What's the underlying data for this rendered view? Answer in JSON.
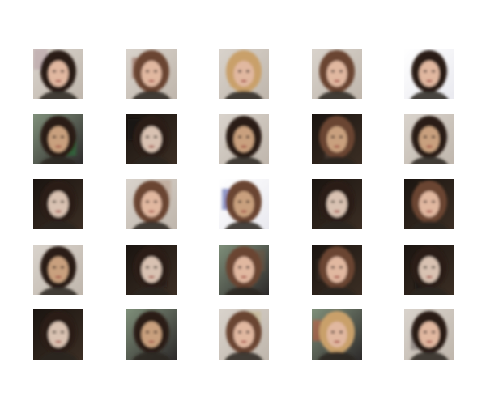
{
  "figure": {
    "rows": 5,
    "cols": 5,
    "background": "#ffffff",
    "samples": [
      {
        "bg": "light",
        "hair": "dark",
        "skin": "light",
        "tint": "#b49aa2"
      },
      {
        "bg": "light",
        "hair": "brown",
        "skin": "light",
        "tint": "#8a5a48"
      },
      {
        "bg": "light",
        "hair": "blonde",
        "skin": "light",
        "tint": "#c7a57a"
      },
      {
        "bg": "light",
        "hair": "brown",
        "skin": "light",
        "tint": "#6e4b44"
      },
      {
        "bg": "white",
        "hair": "dark",
        "skin": "light",
        "tint": "#2a2220"
      },
      {
        "bg": "mixed",
        "hair": "dark",
        "skin": "tan",
        "tint": "#2a7a3a"
      },
      {
        "bg": "dark",
        "hair": "dark",
        "skin": "pale",
        "tint": "#111111"
      },
      {
        "bg": "light",
        "hair": "dark",
        "skin": "tan",
        "tint": "#8c7b6a"
      },
      {
        "bg": "dark",
        "hair": "brown",
        "skin": "tan",
        "tint": "#55473e"
      },
      {
        "bg": "light",
        "hair": "dark",
        "skin": "tan",
        "tint": "#d9cf8f"
      },
      {
        "bg": "dark",
        "hair": "dark",
        "skin": "pale",
        "tint": "#1a1a1a"
      },
      {
        "bg": "light",
        "hair": "brown",
        "skin": "light",
        "tint": "#b89a86"
      },
      {
        "bg": "white",
        "hair": "brown",
        "skin": "tan",
        "tint": "#3e4aa0"
      },
      {
        "bg": "dark",
        "hair": "dark",
        "skin": "pale",
        "tint": "#2a1e18"
      },
      {
        "bg": "dark",
        "hair": "brown",
        "skin": "light",
        "tint": "#8b5b3d"
      },
      {
        "bg": "light",
        "hair": "dark",
        "skin": "tan",
        "tint": "#c8b57a"
      },
      {
        "bg": "dark",
        "hair": "dark",
        "skin": "pale",
        "tint": "#1d1713"
      },
      {
        "bg": "mixed",
        "hair": "brown",
        "skin": "light",
        "tint": "#6f5440"
      },
      {
        "bg": "dark",
        "hair": "brown",
        "skin": "light",
        "tint": "#3a2e28"
      },
      {
        "bg": "dark",
        "hair": "dark",
        "skin": "pale",
        "tint": "#121212"
      },
      {
        "bg": "dark",
        "hair": "dark",
        "skin": "pale",
        "tint": "#1b1410"
      },
      {
        "bg": "mixed",
        "hair": "dark",
        "skin": "tan",
        "tint": "#274066"
      },
      {
        "bg": "light",
        "hair": "brown",
        "skin": "light",
        "tint": "#c6b88a"
      },
      {
        "bg": "mixed",
        "hair": "blonde",
        "skin": "light",
        "tint": "#c45a3a"
      },
      {
        "bg": "light",
        "hair": "dark",
        "skin": "light",
        "tint": "#6b6363"
      }
    ]
  }
}
